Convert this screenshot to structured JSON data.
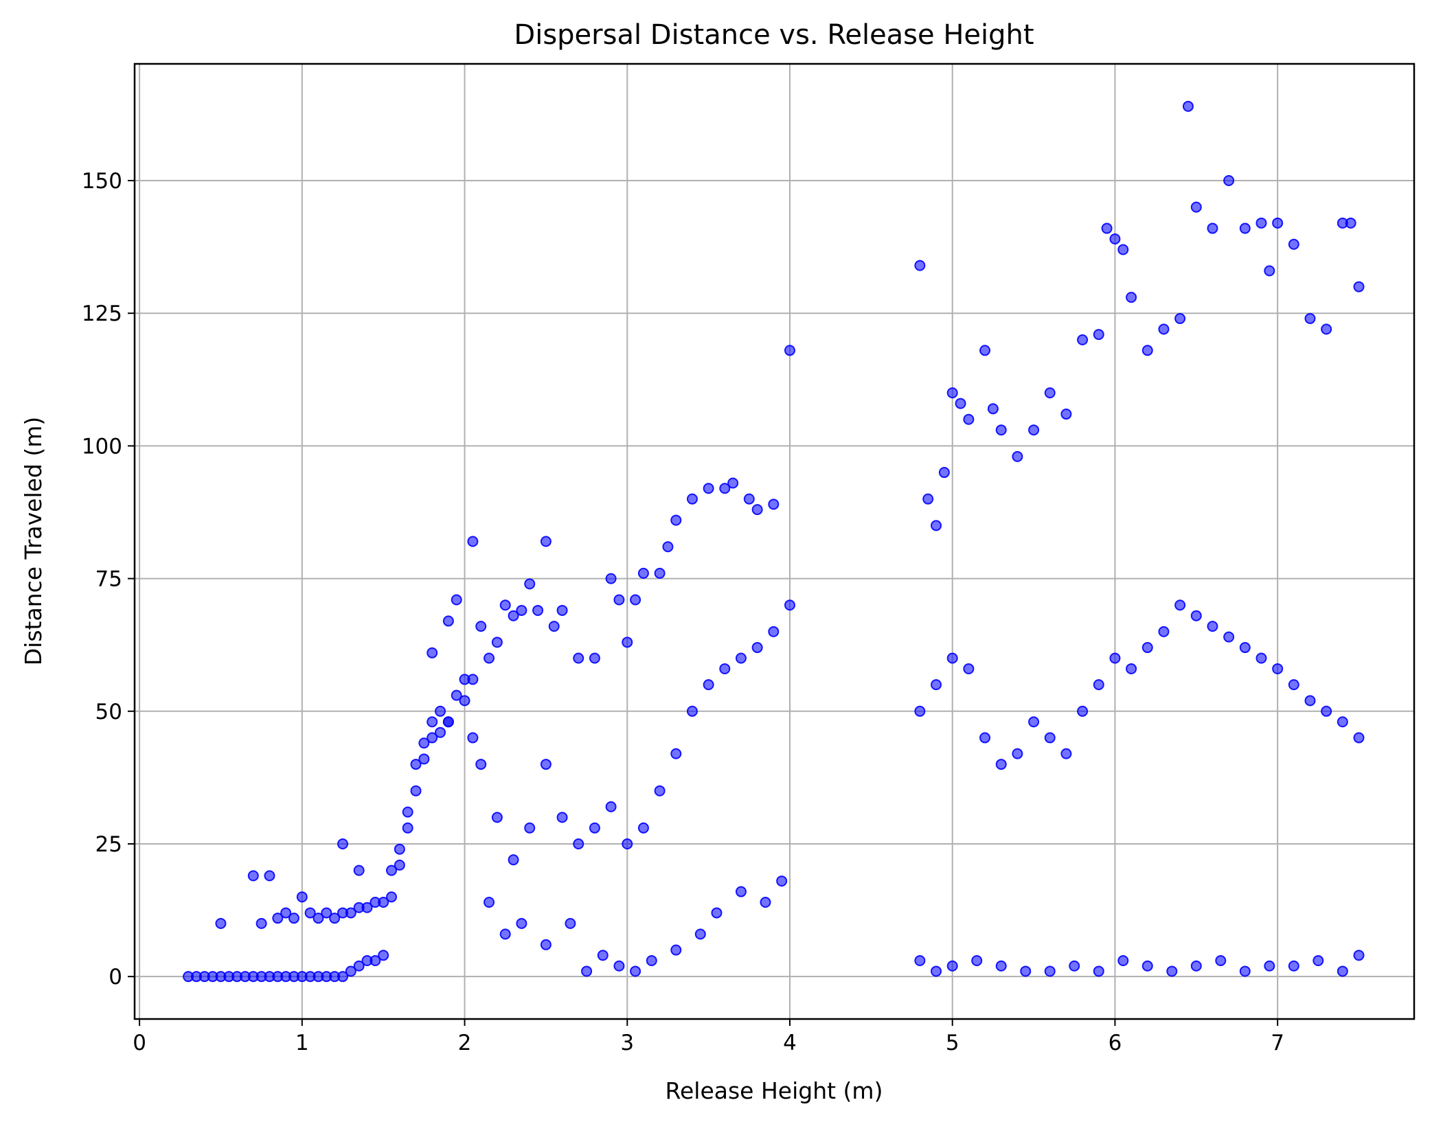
{
  "chart_data": {
    "type": "scatter",
    "title": "Dispersal Distance vs. Release Height",
    "xlabel": "Release Height (m)",
    "ylabel": "Distance Traveled (m)",
    "xlim": [
      -0.03,
      7.84
    ],
    "ylim": [
      -8,
      172
    ],
    "xticks": [
      0,
      1,
      2,
      3,
      4,
      5,
      6,
      7
    ],
    "yticks": [
      0,
      25,
      50,
      75,
      100,
      125,
      150
    ],
    "grid": true,
    "marker_color": "#0000ff",
    "marker_alpha": 0.55,
    "series": [
      {
        "x": [
          0.3,
          0.35,
          0.4,
          0.45,
          0.5,
          0.55,
          0.6,
          0.65,
          0.7,
          0.75,
          0.8,
          0.85,
          0.9,
          0.95,
          1.0,
          1.05,
          1.1,
          1.15,
          1.2,
          1.25,
          0.5,
          0.7,
          0.75,
          0.8,
          0.85,
          0.9,
          0.95,
          1.0,
          1.05,
          1.1,
          1.15,
          1.2,
          1.25,
          1.3,
          1.35,
          1.4,
          1.45,
          1.5,
          1.55,
          1.6,
          1.65,
          1.7,
          1.75,
          1.8,
          1.85,
          1.9,
          1.3,
          1.35,
          1.4,
          1.45,
          1.5,
          1.55,
          1.6,
          1.65,
          1.7,
          1.75,
          1.8,
          1.85,
          1.9,
          1.95,
          2.0,
          1.25,
          1.35,
          1.8,
          1.9,
          1.95,
          2.05,
          2.1,
          2.15,
          2.2,
          2.25,
          2.3,
          2.35,
          2.4,
          2.45,
          2.5,
          2.55,
          2.6,
          2.7,
          2.8,
          2.9,
          2.95,
          3.0,
          3.05,
          3.1,
          3.2,
          3.25,
          3.3,
          3.4,
          3.5,
          3.6,
          3.65,
          3.75,
          3.8,
          3.9,
          4.0,
          2.05,
          2.1,
          2.2,
          2.3,
          2.4,
          2.5,
          2.6,
          2.7,
          2.8,
          2.9,
          3.0,
          3.1,
          3.2,
          3.3,
          3.4,
          3.5,
          3.6,
          3.7,
          3.8,
          3.9,
          4.0,
          2.0,
          2.05,
          2.15,
          2.25,
          2.35,
          2.5,
          2.65,
          2.75,
          2.85,
          2.95,
          3.05,
          3.15,
          3.3,
          3.45,
          3.55,
          3.7,
          3.85,
          3.95,
          4.8,
          4.85,
          4.9,
          4.95,
          5.0,
          5.05,
          5.1,
          5.2,
          5.25,
          5.3,
          5.4,
          5.5,
          5.6,
          5.7,
          5.8,
          5.9,
          5.95,
          6.0,
          6.05,
          6.1,
          6.2,
          6.3,
          6.4,
          6.45,
          6.5,
          6.6,
          6.7,
          6.8,
          6.9,
          6.95,
          7.0,
          7.1,
          7.2,
          7.3,
          7.4,
          7.45,
          7.5,
          4.8,
          4.9,
          5.0,
          5.1,
          5.2,
          5.3,
          5.4,
          5.5,
          5.6,
          5.7,
          5.8,
          5.9,
          6.0,
          6.1,
          6.2,
          6.3,
          6.4,
          6.5,
          6.6,
          6.7,
          6.8,
          6.9,
          7.0,
          7.1,
          7.2,
          7.3,
          7.4,
          7.5,
          4.8,
          4.9,
          5.0,
          5.15,
          5.3,
          5.45,
          5.6,
          5.75,
          5.9,
          6.05,
          6.2,
          6.35,
          6.5,
          6.65,
          6.8,
          6.95,
          7.1,
          7.25,
          7.4,
          7.5
        ],
        "y": [
          0,
          0,
          0,
          0,
          0,
          0,
          0,
          0,
          0,
          0,
          0,
          0,
          0,
          0,
          0,
          0,
          0,
          0,
          0,
          0,
          10,
          19,
          10,
          19,
          11,
          12,
          11,
          15,
          12,
          11,
          12,
          11,
          12,
          12,
          13,
          13,
          14,
          14,
          20,
          24,
          31,
          40,
          44,
          48,
          46,
          48,
          1,
          2,
          3,
          3,
          4,
          15,
          21,
          28,
          35,
          41,
          45,
          50,
          48,
          53,
          56,
          25,
          20,
          61,
          67,
          71,
          82,
          66,
          60,
          63,
          70,
          68,
          69,
          74,
          69,
          82,
          66,
          69,
          60,
          60,
          75,
          71,
          63,
          71,
          76,
          76,
          81,
          86,
          90,
          92,
          92,
          93,
          90,
          88,
          89,
          118,
          45,
          40,
          30,
          22,
          28,
          40,
          30,
          25,
          28,
          32,
          25,
          28,
          35,
          42,
          50,
          55,
          58,
          60,
          62,
          65,
          70,
          52,
          56,
          14,
          8,
          10,
          6,
          10,
          1,
          4,
          2,
          1,
          3,
          5,
          8,
          12,
          16,
          14,
          18,
          134,
          90,
          85,
          95,
          110,
          108,
          105,
          118,
          107,
          103,
          98,
          103,
          110,
          106,
          120,
          121,
          141,
          139,
          137,
          128,
          118,
          122,
          124,
          164,
          145,
          141,
          150,
          141,
          142,
          133,
          142,
          138,
          124,
          122,
          142,
          142,
          130,
          50,
          55,
          60,
          58,
          45,
          40,
          42,
          48,
          45,
          42,
          50,
          55,
          60,
          58,
          62,
          65,
          70,
          68,
          66,
          64,
          62,
          60,
          58,
          55,
          52,
          50,
          48,
          45,
          3,
          1,
          2,
          3,
          2,
          1,
          1,
          2,
          1,
          3,
          2,
          1,
          2,
          3,
          1,
          2,
          2,
          3,
          1,
          4
        ]
      }
    ]
  }
}
